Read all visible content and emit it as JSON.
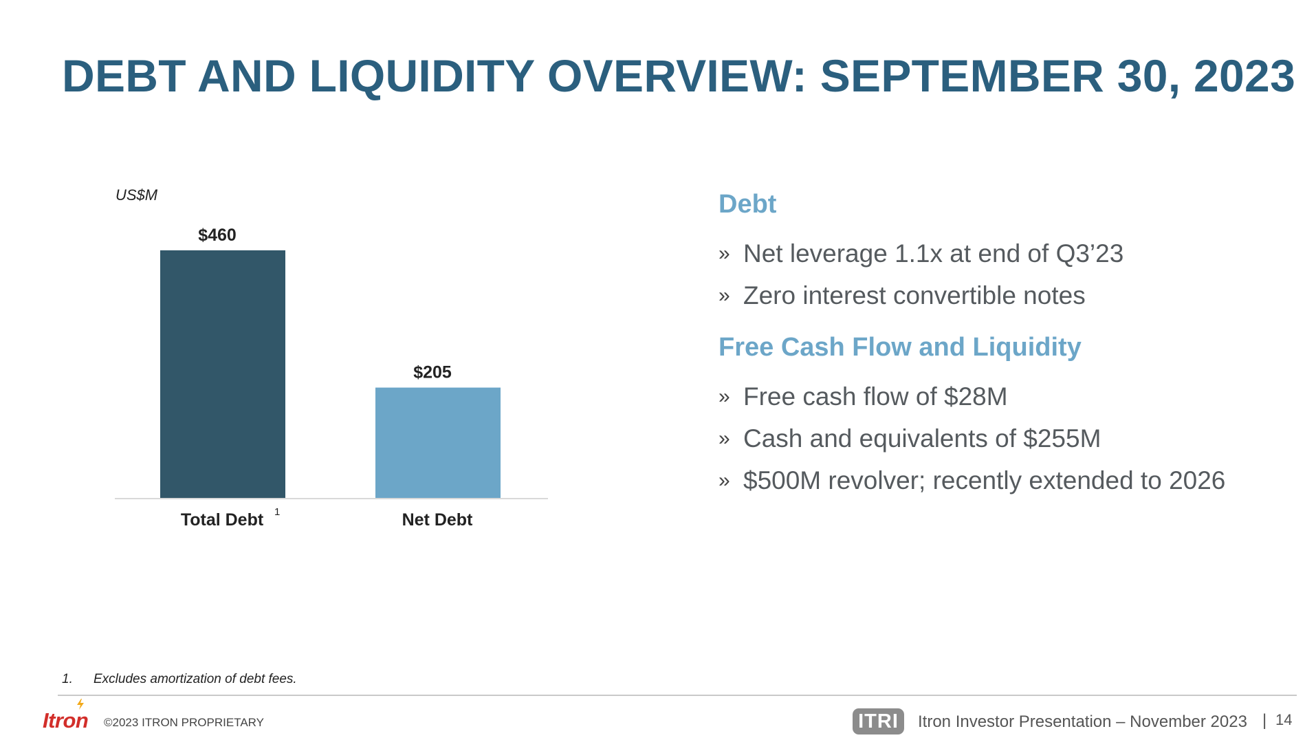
{
  "title": "DEBT AND LIQUIDITY OVERVIEW: SEPTEMBER 30, 2023",
  "chart_data": {
    "type": "bar",
    "unit_label": "US$M",
    "categories": [
      "Total Debt",
      "Net Debt"
    ],
    "category_superscripts": [
      "1",
      ""
    ],
    "values": [
      460,
      205
    ],
    "value_labels": [
      "$460",
      "$205"
    ],
    "colors": [
      "#325769",
      "#6ca6c8"
    ],
    "ylim": [
      0,
      460
    ],
    "grid": false
  },
  "sections": [
    {
      "heading": "Debt",
      "bullets": [
        "Net leverage 1.1x at end of Q3’23",
        "Zero interest convertible notes"
      ]
    },
    {
      "heading": "Free Cash Flow and Liquidity",
      "bullets": [
        "Free cash flow of $28M",
        "Cash and equivalents of $255M",
        "$500M revolver; recently extended to 2026"
      ]
    }
  ],
  "bullet_mark": "»",
  "footnote": {
    "number": "1.",
    "text": "Excludes amortization of debt fees."
  },
  "footer": {
    "logo_text": "Itron",
    "copyright": "©2023  ITRON PROPRIETARY",
    "ticker": "ITRI",
    "presentation": "Itron Investor Presentation – November 2023",
    "separator": "|",
    "page_number": "14"
  },
  "colors": {
    "title": "#2b5f7e",
    "heading": "#6ca6c8",
    "logo": "#d22e2a"
  }
}
